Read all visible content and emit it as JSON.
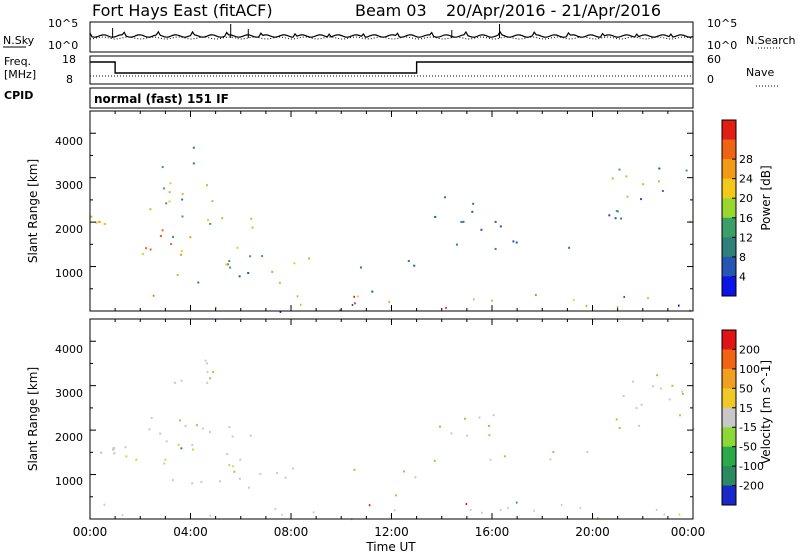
{
  "header": {
    "radar": "Fort Hays East (fitACF)",
    "beam": "Beam 03",
    "dates": "20/Apr/2016 - 21/Apr/2016"
  },
  "noise_panel": {
    "left_label": "N.Sky",
    "right_label": "N.Search",
    "left_ticks": [
      "10^5",
      "10^0"
    ],
    "right_ticks": [
      "10^5",
      "10^0"
    ]
  },
  "freq_panel": {
    "left_label_1": "Freq.",
    "left_label_2": "[MHz]",
    "right_label": "Nave",
    "left_ticks": [
      "18",
      "8"
    ],
    "right_ticks": [
      "60",
      "0"
    ],
    "cpid_label": "CPID",
    "cpid_text": "normal (fast) 151 IF"
  },
  "x_axis": {
    "label": "Time UT",
    "ticks": [
      "00:00",
      "04:00",
      "08:00",
      "12:00",
      "16:00",
      "20:00",
      "00:00"
    ]
  },
  "chart_data": [
    {
      "type": "heatmap",
      "id": "power",
      "ylabel": "Slant Range [km]",
      "colorbar_label": "Power [dB]",
      "y_ticks": [
        "1000",
        "2000",
        "3000",
        "4000"
      ],
      "colorbar_ticks": [
        "4",
        "8",
        "12",
        "16",
        "20",
        "24",
        "28"
      ],
      "colors": [
        "#0a14e6",
        "#2655b4",
        "#2f7f7a",
        "#3aa067",
        "#99d62e",
        "#f2c81a",
        "#f29a14",
        "#ef6414",
        "#e01e14"
      ],
      "ylim": [
        0,
        4500
      ],
      "xlim_hours": [
        0,
        24
      ]
    },
    {
      "type": "heatmap",
      "id": "velocity",
      "ylabel": "Slant Range [km]",
      "colorbar_label": "Velocity [m s^-1]",
      "y_ticks": [
        "1000",
        "2000",
        "3000",
        "4000"
      ],
      "colorbar_ticks": [
        "200",
        "100",
        "50",
        "15",
        "-15",
        "-50",
        "-100",
        "-200"
      ],
      "colors": [
        "#1a28c8",
        "#2a8a62",
        "#2aa84a",
        "#8cd838",
        "#c8c8c8",
        "#f0c828",
        "#f0a020",
        "#f06414",
        "#e01414"
      ],
      "ylim": [
        0,
        4500
      ],
      "xlim_hours": [
        0,
        24
      ]
    }
  ]
}
